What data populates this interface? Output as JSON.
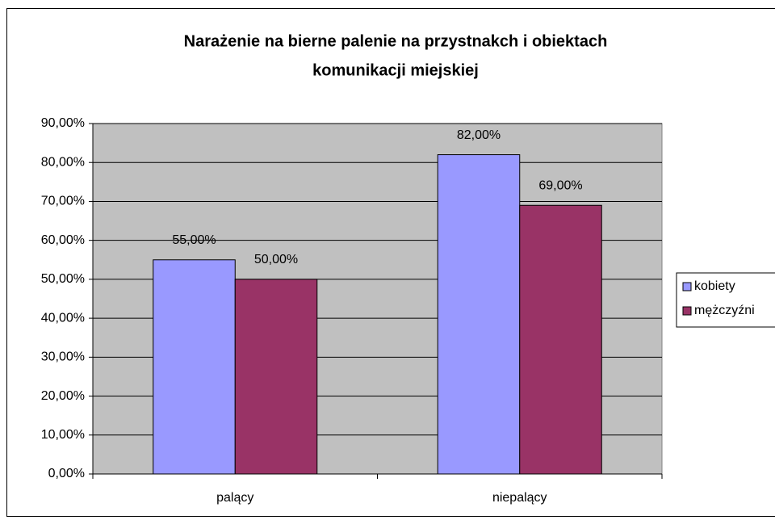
{
  "chart_data": {
    "type": "bar",
    "title": [
      "Narażenie na bierne palenie na przystnakch i obiektach",
      "komunikacji miejskiej"
    ],
    "categories": [
      "palący",
      "niepalący"
    ],
    "series": [
      {
        "name": "kobiety",
        "color": "#9999ff",
        "values": [
          55,
          82
        ],
        "value_labels": [
          "55,00%",
          "82,00%"
        ]
      },
      {
        "name": "mężczyźni",
        "color": "#993366",
        "values": [
          50,
          69
        ],
        "value_labels": [
          "50,00%",
          "69,00%"
        ]
      }
    ],
    "ylim": [
      0,
      90
    ],
    "yticks": [
      {
        "value": 0,
        "label": "0,00%"
      },
      {
        "value": 10,
        "label": "10,00%"
      },
      {
        "value": 20,
        "label": "20,00%"
      },
      {
        "value": 30,
        "label": "30,00%"
      },
      {
        "value": 40,
        "label": "40,00%"
      },
      {
        "value": 50,
        "label": "50,00%"
      },
      {
        "value": 60,
        "label": "60,00%"
      },
      {
        "value": 70,
        "label": "70,00%"
      },
      {
        "value": 80,
        "label": "80,00%"
      },
      {
        "value": 90,
        "label": "90,00%"
      }
    ],
    "grid": true,
    "legend": "right"
  }
}
